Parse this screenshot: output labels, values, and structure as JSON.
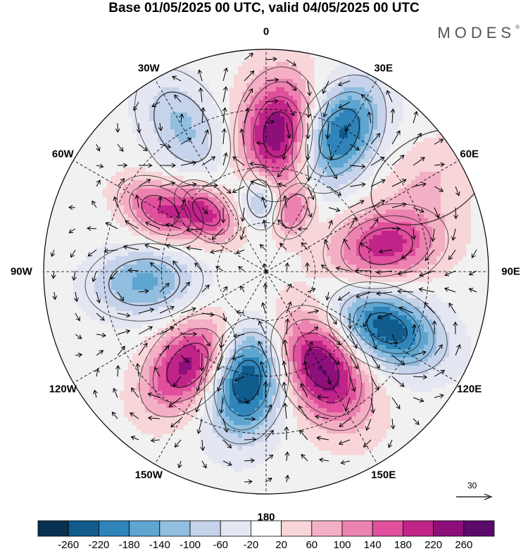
{
  "header": {
    "title": "Base 01/05/2025 00 UTC, valid 04/05/2025 00 UTC",
    "brand": "MODES",
    "brand_mark": "®"
  },
  "map": {
    "projection": "south-polar-stereographic",
    "longitude_labels": [
      {
        "id": "0",
        "text": "0",
        "lon": 0
      },
      {
        "id": "30e",
        "text": "30E",
        "lon": 30
      },
      {
        "id": "60e",
        "text": "60E",
        "lon": 60
      },
      {
        "id": "90e",
        "text": "90E",
        "lon": 90
      },
      {
        "id": "120e",
        "text": "120E",
        "lon": 120
      },
      {
        "id": "150e",
        "text": "150E",
        "lon": 150
      },
      {
        "id": "180",
        "text": "180",
        "lon": 180
      },
      {
        "id": "150w",
        "text": "150W",
        "lon": -150
      },
      {
        "id": "120w",
        "text": "120W",
        "lon": -120
      },
      {
        "id": "90w",
        "text": "90W",
        "lon": -90
      },
      {
        "id": "60w",
        "text": "60W",
        "lon": -60
      },
      {
        "id": "30w",
        "text": "30W",
        "lon": -30
      }
    ],
    "wind_reference": {
      "value": "30"
    },
    "anomaly_centers": [
      {
        "lon": 5,
        "r": 0.62,
        "value": 260,
        "spread": 0.32
      },
      {
        "lon": 28,
        "r": 0.7,
        "value": -240,
        "spread": 0.3
      },
      {
        "lon": 78,
        "r": 0.55,
        "value": 200,
        "spread": 0.3
      },
      {
        "lon": 115,
        "r": 0.6,
        "value": -250,
        "spread": 0.3
      },
      {
        "lon": 150,
        "r": 0.5,
        "value": 270,
        "spread": 0.32
      },
      {
        "lon": -170,
        "r": 0.5,
        "value": -270,
        "spread": 0.3
      },
      {
        "lon": -140,
        "r": 0.55,
        "value": 240,
        "spread": 0.28
      },
      {
        "lon": -95,
        "r": 0.55,
        "value": -150,
        "spread": 0.28
      },
      {
        "lon": -60,
        "r": 0.55,
        "value": 180,
        "spread": 0.22
      },
      {
        "lon": -45,
        "r": 0.38,
        "value": 180,
        "spread": 0.18
      },
      {
        "lon": -30,
        "r": 0.75,
        "value": -110,
        "spread": 0.3
      },
      {
        "lon": -5,
        "r": 0.33,
        "value": -140,
        "spread": 0.15
      },
      {
        "lon": 25,
        "r": 0.3,
        "value": 120,
        "spread": 0.14
      },
      {
        "lon": 60,
        "r": 0.85,
        "value": 60,
        "spread": 0.3
      }
    ]
  },
  "colorbar": {
    "colors": [
      "#08304f",
      "#0f5c8d",
      "#2f84b9",
      "#5ea5d0",
      "#92bedf",
      "#c6d3ea",
      "#e4e6f2",
      "#ffffff",
      "#f7d5d8",
      "#f3b0c4",
      "#ec82b0",
      "#e0509d",
      "#c02488",
      "#8d0f7a",
      "#5b0a6c"
    ],
    "labels": [
      "-260",
      "-220",
      "-180",
      "-140",
      "-100",
      "-60",
      "-20",
      "20",
      "60",
      "100",
      "140",
      "180",
      "220",
      "260"
    ]
  }
}
